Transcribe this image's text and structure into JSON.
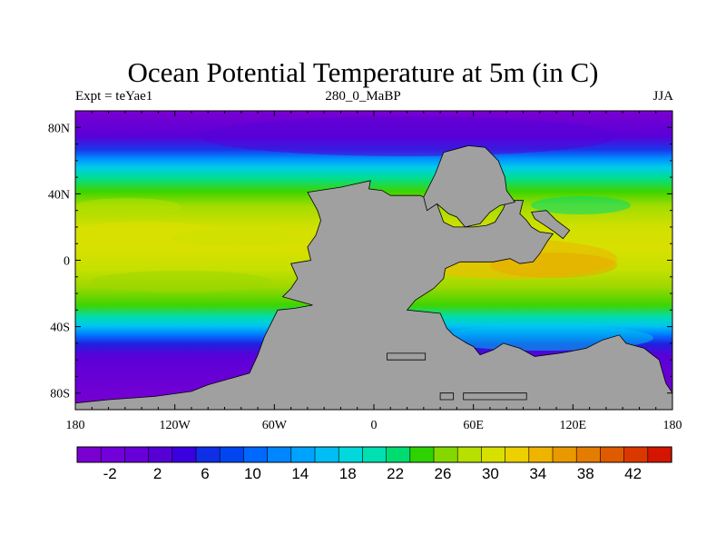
{
  "title": "Ocean Potential Temperature at 5m (in C)",
  "left_string": "Expt = teYae1",
  "center_string": "280_0_MaBP",
  "right_string": "JJA",
  "map_data": {
    "type": "filled-contour-map",
    "projection": "cylindrical-equidistant",
    "lon_range": [
      -180,
      180
    ],
    "lat_range": [
      -90,
      90
    ],
    "x_ticks": [
      {
        "lon": -180,
        "label": "180"
      },
      {
        "lon": -120,
        "label": "120W"
      },
      {
        "lon": -60,
        "label": "60W"
      },
      {
        "lon": 0,
        "label": "0"
      },
      {
        "lon": 60,
        "label": "60E"
      },
      {
        "lon": 120,
        "label": "120E"
      },
      {
        "lon": 180,
        "label": "180"
      }
    ],
    "y_ticks": [
      {
        "lat": 80,
        "label": "80N"
      },
      {
        "lat": 40,
        "label": "40N"
      },
      {
        "lat": 0,
        "label": "0"
      },
      {
        "lat": -40,
        "label": "40S"
      },
      {
        "lat": -80,
        "label": "80S"
      }
    ],
    "land_color": "#a0a0a0",
    "continents": [
      {
        "name": "pangea-main",
        "outline": [
          [
            -40,
            41
          ],
          [
            -20,
            44
          ],
          [
            -2,
            48
          ],
          [
            -3,
            43
          ],
          [
            5,
            42
          ],
          [
            10,
            39
          ],
          [
            28,
            39
          ],
          [
            38,
            34
          ],
          [
            42,
            23
          ],
          [
            48,
            20
          ],
          [
            60,
            20
          ],
          [
            68,
            21
          ],
          [
            73,
            23
          ],
          [
            78,
            31
          ],
          [
            80,
            36
          ],
          [
            90,
            36
          ],
          [
            88,
            28
          ],
          [
            92,
            24
          ],
          [
            95,
            20
          ],
          [
            100,
            17
          ],
          [
            108,
            16
          ],
          [
            105,
            12
          ],
          [
            100,
            4
          ],
          [
            96,
            -1
          ],
          [
            88,
            -2
          ],
          [
            82,
            1
          ],
          [
            72,
            -1
          ],
          [
            62,
            -1
          ],
          [
            52,
            -1
          ],
          [
            43,
            -5
          ],
          [
            42,
            -11
          ],
          [
            36,
            -17
          ],
          [
            25,
            -24
          ],
          [
            20,
            -30
          ],
          [
            40,
            -32
          ],
          [
            44,
            -41
          ],
          [
            48,
            -45
          ],
          [
            56,
            -50
          ],
          [
            60,
            -52
          ],
          [
            64,
            -57
          ],
          [
            72,
            -54
          ],
          [
            78,
            -50
          ],
          [
            88,
            -53
          ],
          [
            97,
            -58
          ],
          [
            104,
            -57
          ],
          [
            112,
            -56
          ],
          [
            118,
            -55
          ],
          [
            128,
            -53
          ],
          [
            138,
            -48
          ],
          [
            148,
            -45
          ],
          [
            152,
            -50
          ],
          [
            163,
            -53
          ],
          [
            168,
            -57
          ],
          [
            172,
            -60
          ],
          [
            174,
            -67
          ],
          [
            176,
            -74
          ],
          [
            180,
            -80
          ],
          [
            180,
            -90
          ],
          [
            -180,
            -90
          ],
          [
            -180,
            -86
          ],
          [
            -160,
            -84
          ],
          [
            -132,
            -82
          ],
          [
            -110,
            -79
          ],
          [
            -100,
            -75
          ],
          [
            -82,
            -70
          ],
          [
            -75,
            -68
          ],
          [
            -70,
            -57
          ],
          [
            -66,
            -46
          ],
          [
            -58,
            -30
          ],
          [
            -48,
            -29
          ],
          [
            -37,
            -27
          ],
          [
            -55,
            -22
          ],
          [
            -50,
            -17
          ],
          [
            -46,
            -11
          ],
          [
            -50,
            -2
          ],
          [
            -38,
            0
          ],
          [
            -40,
            8
          ],
          [
            -35,
            15
          ],
          [
            -32,
            24
          ],
          [
            -34,
            30
          ],
          [
            -40,
            41
          ]
        ]
      },
      {
        "name": "laurasia-north",
        "outline": [
          [
            32,
            30
          ],
          [
            30,
            38
          ],
          [
            37,
            52
          ],
          [
            42,
            65
          ],
          [
            57,
            69
          ],
          [
            67,
            68
          ],
          [
            75,
            60
          ],
          [
            79,
            50
          ],
          [
            80,
            42
          ],
          [
            85,
            35
          ],
          [
            76,
            33
          ],
          [
            70,
            29
          ],
          [
            64,
            22
          ],
          [
            55,
            20
          ],
          [
            50,
            26
          ],
          [
            45,
            28
          ],
          [
            38,
            34
          ],
          [
            32,
            30
          ]
        ]
      },
      {
        "name": "east-island",
        "outline": [
          [
            95,
            29
          ],
          [
            104,
            30
          ],
          [
            110,
            24
          ],
          [
            118,
            18
          ],
          [
            114,
            13
          ],
          [
            109,
            17
          ],
          [
            103,
            21
          ],
          [
            97,
            25
          ],
          [
            95,
            29
          ]
        ]
      },
      {
        "name": "island-a",
        "outline": [
          [
            8,
            -56
          ],
          [
            31,
            -56
          ],
          [
            31,
            -60
          ],
          [
            8,
            -60
          ],
          [
            8,
            -56
          ]
        ]
      },
      {
        "name": "island-b",
        "outline": [
          [
            40,
            -80
          ],
          [
            48,
            -80
          ],
          [
            48,
            -84
          ],
          [
            40,
            -84
          ],
          [
            40,
            -80
          ]
        ]
      },
      {
        "name": "island-c",
        "outline": [
          [
            54,
            -80
          ],
          [
            92,
            -80
          ],
          [
            92,
            -84
          ],
          [
            54,
            -84
          ],
          [
            54,
            -80
          ]
        ]
      }
    ],
    "features": [
      "polar water near -2 C in both hemispheres",
      "warm tropical band 26-34 C spanning the Panthalassa and Tethys oceans",
      "Tethys Sea embayment warmest near 34 C"
    ]
  },
  "colorbar": {
    "colors": [
      "#7a00d1",
      "#7200d8",
      "#6700d8",
      "#5600d5",
      "#3a00e0",
      "#0f2fe6",
      "#0046f0",
      "#0068ff",
      "#0086ff",
      "#00a2ff",
      "#00bef5",
      "#00d8dc",
      "#00e0b0",
      "#00dc72",
      "#2ed200",
      "#84d800",
      "#b7e000",
      "#d8e000",
      "#ecd000",
      "#eeb400",
      "#e99800",
      "#e47c00",
      "#e05a00",
      "#db3800",
      "#d41500"
    ],
    "labels": [
      "-2",
      "2",
      "6",
      "10",
      "14",
      "18",
      "22",
      "26",
      "30",
      "34",
      "38",
      "42"
    ]
  }
}
